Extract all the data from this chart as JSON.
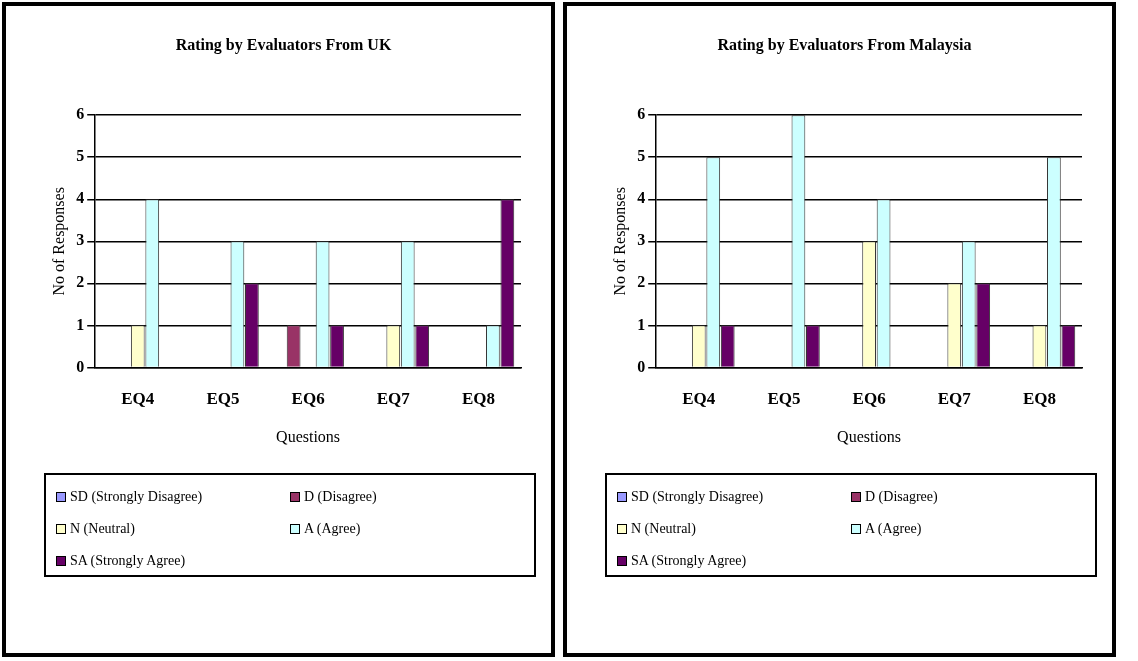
{
  "chart_data": [
    {
      "type": "bar",
      "title": "Rating by Evaluators From UK",
      "xlabel": "Questions",
      "ylabel": "No of Responses",
      "categories": [
        "EQ4",
        "EQ5",
        "EQ6",
        "EQ7",
        "EQ8"
      ],
      "series": [
        {
          "name": "SD (Strongly Disagree)",
          "color": "#9999ff",
          "values": [
            0,
            0,
            0,
            0,
            0
          ]
        },
        {
          "name": "D (Disagree)",
          "color": "#993366",
          "values": [
            0,
            0,
            1,
            0,
            0
          ]
        },
        {
          "name": "N (Neutral)",
          "color": "#ffffcc",
          "values": [
            1,
            0,
            0,
            1,
            0
          ]
        },
        {
          "name": "A (Agree)",
          "color": "#ccffff",
          "values": [
            4,
            3,
            3,
            3,
            1
          ]
        },
        {
          "name": "SA (Strongly Agree)",
          "color": "#660066",
          "values": [
            0,
            2,
            1,
            1,
            4
          ]
        }
      ],
      "ylim": [
        0,
        6
      ],
      "yticks": [
        0,
        1,
        2,
        3,
        4,
        5,
        6
      ],
      "grid": "y",
      "legend": "bottom"
    },
    {
      "type": "bar",
      "title": "Rating by Evaluators From Malaysia",
      "xlabel": "Questions",
      "ylabel": "No of Responses",
      "categories": [
        "EQ4",
        "EQ5",
        "EQ6",
        "EQ7",
        "EQ8"
      ],
      "series": [
        {
          "name": "SD (Strongly Disagree)",
          "color": "#9999ff",
          "values": [
            0,
            0,
            0,
            0,
            0
          ]
        },
        {
          "name": "D (Disagree)",
          "color": "#993366",
          "values": [
            0,
            0,
            0,
            0,
            0
          ]
        },
        {
          "name": "N (Neutral)",
          "color": "#ffffcc",
          "values": [
            1,
            0,
            3,
            2,
            1
          ]
        },
        {
          "name": "A (Agree)",
          "color": "#ccffff",
          "values": [
            5,
            6,
            4,
            3,
            5
          ]
        },
        {
          "name": "SA (Strongly Agree)",
          "color": "#660066",
          "values": [
            1,
            1,
            0,
            2,
            1
          ]
        }
      ],
      "ylim": [
        0,
        6
      ],
      "yticks": [
        0,
        1,
        2,
        3,
        4,
        5,
        6
      ],
      "grid": "y",
      "legend": "bottom"
    }
  ]
}
